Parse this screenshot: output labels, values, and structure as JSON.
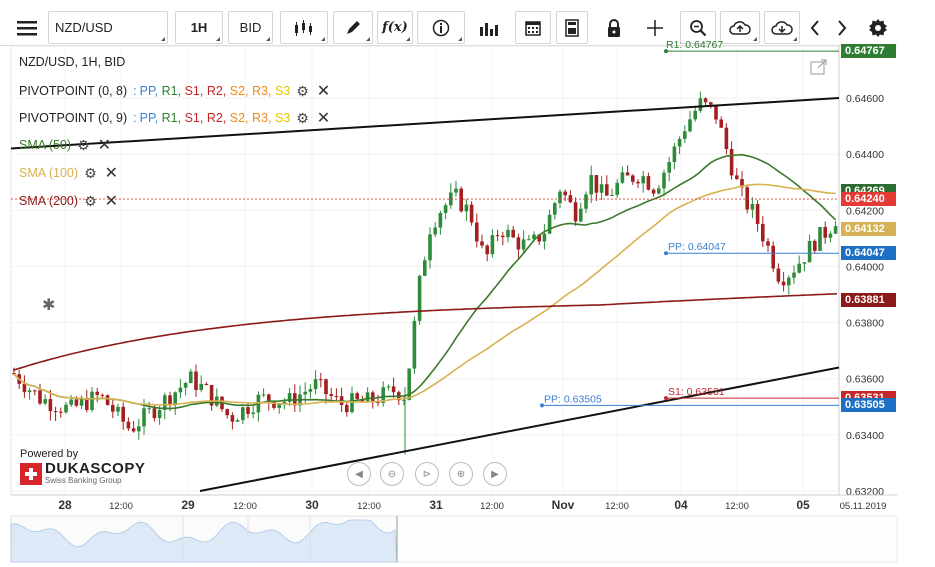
{
  "toolbar": {
    "menu_icon": "hamburger-icon",
    "instrument": "NZD/USD",
    "period": "1H",
    "side": "BID",
    "buttons": [
      "candle-type-icon",
      "pencil-icon",
      "function-icon",
      "info-icon",
      "bar-chart-icon",
      "calendar-icon",
      "calculator-icon",
      "lock-icon",
      "crosshair-icon",
      "zoom-icon",
      "cloud-upload-icon",
      "cloud-download-icon",
      "chevron-left-icon",
      "chevron-right-icon",
      "gear-icon"
    ],
    "function_label": "f(x)"
  },
  "legend": {
    "title": "NZD/USD, 1H, BID",
    "pivot1_label": "PIVOTPOINT (0, 8)",
    "pivot2_label": "PIVOTPOINT (0, 9)",
    "pivot_sep": ":",
    "pivot_keys": [
      "PP",
      "R1",
      "S1",
      "R2",
      "S2",
      "R3",
      "S3"
    ],
    "pivot_colors": [
      "#3a7fd4",
      "#2e7d32",
      "#c62828",
      "#c62828",
      "#ef8c1a",
      "#ef8c1a",
      "#e6c400"
    ],
    "sma50_label": "SMA (50)",
    "sma100_label": "SMA (100)",
    "sma200_label": "SMA (200)"
  },
  "brand": {
    "powered_by": "Powered by",
    "name": "DUKASCOPY",
    "tagline": "Swiss Banking Group"
  },
  "annotations": {
    "r1_label": "R1: 0.64767",
    "pp_label_1": "PP: 0.64047",
    "pp_label_2": "PP: 0.63505",
    "s1_label": "S1: 0.63531"
  },
  "price_tags": [
    {
      "value": "0.64767",
      "color": "#2e7d32"
    },
    {
      "value": "0.64269",
      "color": "#2e6b2e"
    },
    {
      "value": "0.64240",
      "color": "#e53935"
    },
    {
      "value": "0.64132",
      "color": "#d4b255"
    },
    {
      "value": "0.64047",
      "color": "#1e6fc4"
    },
    {
      "value": "0.63881",
      "color": "#8b1a1a"
    },
    {
      "value": "0.63531",
      "color": "#c62828"
    },
    {
      "value": "0.63505",
      "color": "#1e6fc4"
    }
  ],
  "colors": {
    "bull": "#2e8b3a",
    "bear": "#a32020",
    "sma50": "#3a7a2a",
    "sma100": "#d8b250",
    "sma200": "#8b1a1a",
    "trend": "#111111"
  },
  "chart_data": {
    "type": "candlestick",
    "instrument": "NZD/USD",
    "timeframe": "1H",
    "side": "BID",
    "y_axis_ticks": [
      "0.64600",
      "0.64400",
      "0.64200",
      "0.64000",
      "0.63800",
      "0.63600",
      "0.63400",
      "0.63200"
    ],
    "ylim": [
      0.632,
      0.6478
    ],
    "x_axis_ticks": [
      "28",
      "12:00",
      "29",
      "12:00",
      "30",
      "12:00",
      "31",
      "12:00",
      "Nov",
      "12:00",
      "04",
      "12:00",
      "05",
      "05.11.2019"
    ],
    "series": [
      {
        "name": "SMA (50)",
        "last": 0.64269
      },
      {
        "name": "SMA (100)",
        "last": 0.64132
      },
      {
        "name": "SMA (200)",
        "last": 0.63881
      }
    ],
    "levels": [
      {
        "name": "R1",
        "value": 0.64767
      },
      {
        "name": "PP",
        "value": 0.64047
      },
      {
        "name": "PP",
        "value": 0.63505
      },
      {
        "name": "S1",
        "value": 0.63531
      }
    ],
    "last_close": 0.6424
  }
}
